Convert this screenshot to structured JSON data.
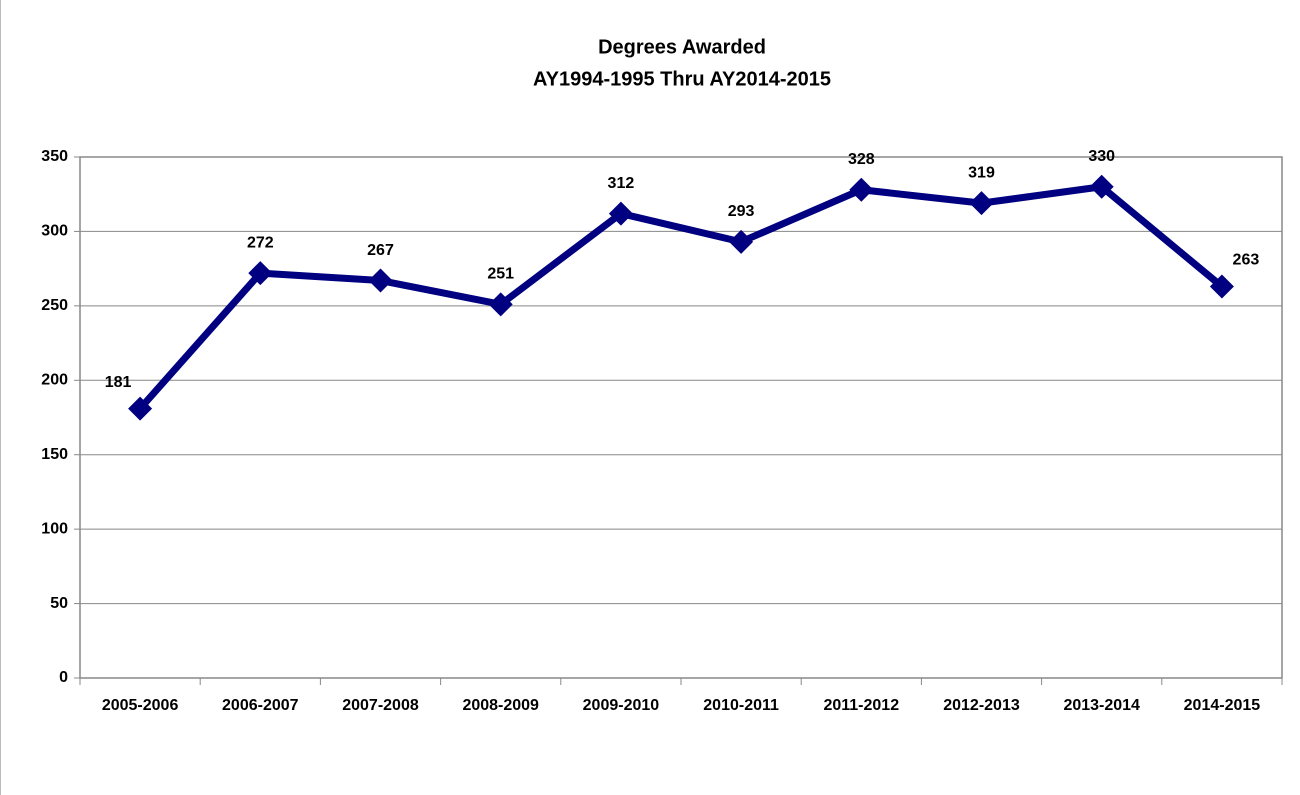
{
  "chart_data": {
    "type": "line",
    "title": "Degrees Awarded",
    "subtitle": "AY1994-1995 Thru AY2014-2015",
    "categories": [
      "2005-2006",
      "2006-2007",
      "2007-2008",
      "2008-2009",
      "2009-2010",
      "2010-2011",
      "2011-2012",
      "2012-2013",
      "2013-2014",
      "2014-2015"
    ],
    "series": [
      {
        "color": "#000080",
        "values": [
          181,
          272,
          267,
          251,
          312,
          293,
          328,
          319,
          330,
          263
        ]
      }
    ],
    "ylim": [
      0,
      350
    ],
    "yticks": [
      0,
      50,
      100,
      150,
      200,
      250,
      300,
      350
    ],
    "grid": true
  }
}
